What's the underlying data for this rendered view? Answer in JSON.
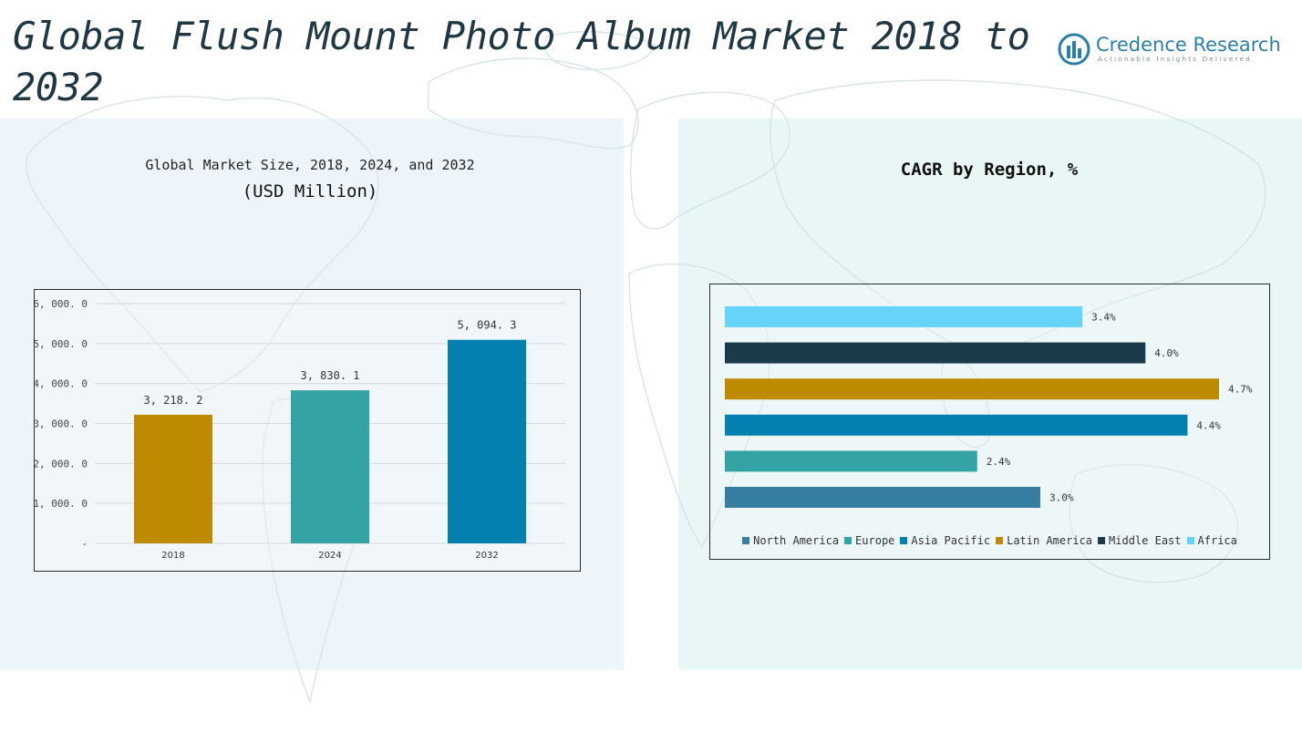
{
  "header": {
    "title": "Global Flush Mount Photo Album Market 2018 to 2032"
  },
  "logo": {
    "name": "Credence Research",
    "tagline": "Actionable Insights Delivered"
  },
  "left_panel": {
    "subtitle_line1": "Global Market Size, 2018, 2024, and 2032",
    "subtitle_line2": "(USD Million)"
  },
  "right_panel": {
    "subtitle": "CAGR by Region, %"
  },
  "colors": {
    "gold": "#BE8A00",
    "teal": "#33A3A3",
    "blue": "#0480B0",
    "steel_blue": "#357EA0",
    "dark_navy": "#1B3A4A",
    "sky_blue": "#66D3FA"
  },
  "chart_data": [
    {
      "type": "bar",
      "categories": [
        "2018",
        "2024",
        "2032"
      ],
      "values": [
        3218.2,
        3830.1,
        5094.3
      ],
      "value_labels": [
        "3, 218. 2",
        "3, 830. 1",
        "5, 094. 3"
      ],
      "bar_colors": [
        "#BE8A00",
        "#33A3A3",
        "#0480B0"
      ],
      "ylim": [
        0,
        6000
      ],
      "yticks": [
        0,
        1000,
        2000,
        3000,
        4000,
        5000,
        6000
      ],
      "ytick_labels": [
        "-",
        "1, 000. 0",
        "2, 000. 0",
        "3, 000. 0",
        "4, 000. 0",
        "5, 000. 0",
        "6, 000. 0"
      ],
      "grid": true
    },
    {
      "type": "bar",
      "orientation": "horizontal",
      "categories": [
        "North America",
        "Europe",
        "Asia Pacific",
        "Latin America",
        "Middle East",
        "Africa"
      ],
      "values": [
        3.0,
        2.4,
        4.4,
        4.7,
        4.0,
        3.4
      ],
      "value_labels": [
        "3.0%",
        "2.4%",
        "4.4%",
        "4.7%",
        "4.0%",
        "3.4%"
      ],
      "bar_colors": [
        "#357EA0",
        "#33A3A3",
        "#0480B0",
        "#BE8A00",
        "#1B3A4A",
        "#66D3FA"
      ],
      "xlim": [
        0,
        4.7
      ],
      "grid": false,
      "legend": {
        "position": "bottom",
        "items": [
          "North America",
          "Europe",
          "Asia Pacific",
          "Latin America",
          "Middle East",
          "Africa"
        ]
      }
    }
  ]
}
